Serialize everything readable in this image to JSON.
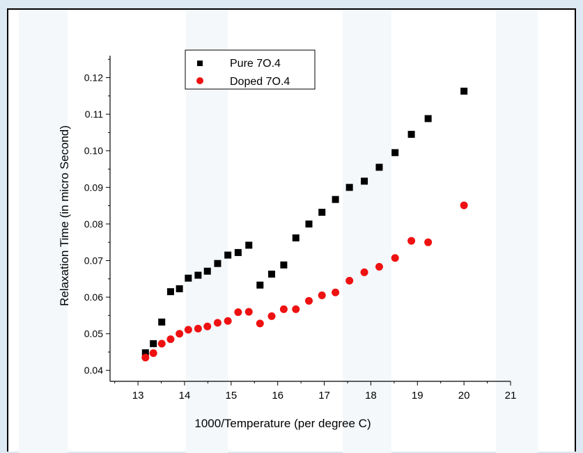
{
  "chart_data": {
    "type": "scatter",
    "xlabel": "1000/Temperature (per degree C)",
    "ylabel": "Relaxation Time (in micro Second)",
    "xlim": [
      12.4,
      21.0
    ],
    "ylim": [
      0.037,
      0.126
    ],
    "x_ticks": [
      13,
      14,
      15,
      16,
      17,
      18,
      19,
      20,
      21
    ],
    "y_ticks": [
      0.04,
      0.05,
      0.06,
      0.07,
      0.08,
      0.09,
      0.1,
      0.11,
      0.12
    ],
    "x_tick_labels": [
      "13",
      "14",
      "15",
      "16",
      "17",
      "18",
      "19",
      "20",
      "21"
    ],
    "y_tick_labels": [
      "0.04",
      "0.05",
      "0.06",
      "0.07",
      "0.08",
      "0.09",
      "0.10",
      "0.11",
      "0.12"
    ],
    "legend_position": "top-left",
    "grid": false,
    "series": [
      {
        "name": "Pure 7O.4",
        "marker": "square",
        "color": "#000000",
        "points": [
          [
            13.16,
            0.0448
          ],
          [
            13.33,
            0.0473
          ],
          [
            13.51,
            0.0532
          ],
          [
            13.7,
            0.0615
          ],
          [
            13.89,
            0.0623
          ],
          [
            14.08,
            0.0652
          ],
          [
            14.29,
            0.066
          ],
          [
            14.49,
            0.0671
          ],
          [
            14.71,
            0.0692
          ],
          [
            14.93,
            0.0715
          ],
          [
            15.15,
            0.0722
          ],
          [
            15.38,
            0.0742
          ],
          [
            15.62,
            0.0633
          ],
          [
            15.87,
            0.0663
          ],
          [
            16.13,
            0.0688
          ],
          [
            16.39,
            0.0762
          ],
          [
            16.67,
            0.08
          ],
          [
            16.95,
            0.0832
          ],
          [
            17.24,
            0.0867
          ],
          [
            17.54,
            0.09
          ],
          [
            17.86,
            0.0917
          ],
          [
            18.18,
            0.0955
          ],
          [
            18.52,
            0.0995
          ],
          [
            18.87,
            0.1045
          ],
          [
            19.23,
            0.1088
          ],
          [
            20.0,
            0.1163
          ]
        ]
      },
      {
        "name": "Doped 7O.4",
        "marker": "circle",
        "color": "#ee1111",
        "points": [
          [
            13.16,
            0.0435
          ],
          [
            13.33,
            0.0447
          ],
          [
            13.51,
            0.0473
          ],
          [
            13.7,
            0.0485
          ],
          [
            13.89,
            0.05
          ],
          [
            14.08,
            0.0511
          ],
          [
            14.29,
            0.0514
          ],
          [
            14.49,
            0.052
          ],
          [
            14.71,
            0.053
          ],
          [
            14.93,
            0.0535
          ],
          [
            15.15,
            0.0559
          ],
          [
            15.38,
            0.056
          ],
          [
            15.62,
            0.0528
          ],
          [
            15.87,
            0.0548
          ],
          [
            16.13,
            0.0567
          ],
          [
            16.39,
            0.0567
          ],
          [
            16.67,
            0.059
          ],
          [
            16.95,
            0.0605
          ],
          [
            17.24,
            0.0613
          ],
          [
            17.54,
            0.0645
          ],
          [
            17.86,
            0.0668
          ],
          [
            18.18,
            0.0683
          ],
          [
            18.52,
            0.0707
          ],
          [
            18.87,
            0.0754
          ],
          [
            19.23,
            0.075
          ],
          [
            20.0,
            0.0851
          ]
        ]
      }
    ]
  }
}
